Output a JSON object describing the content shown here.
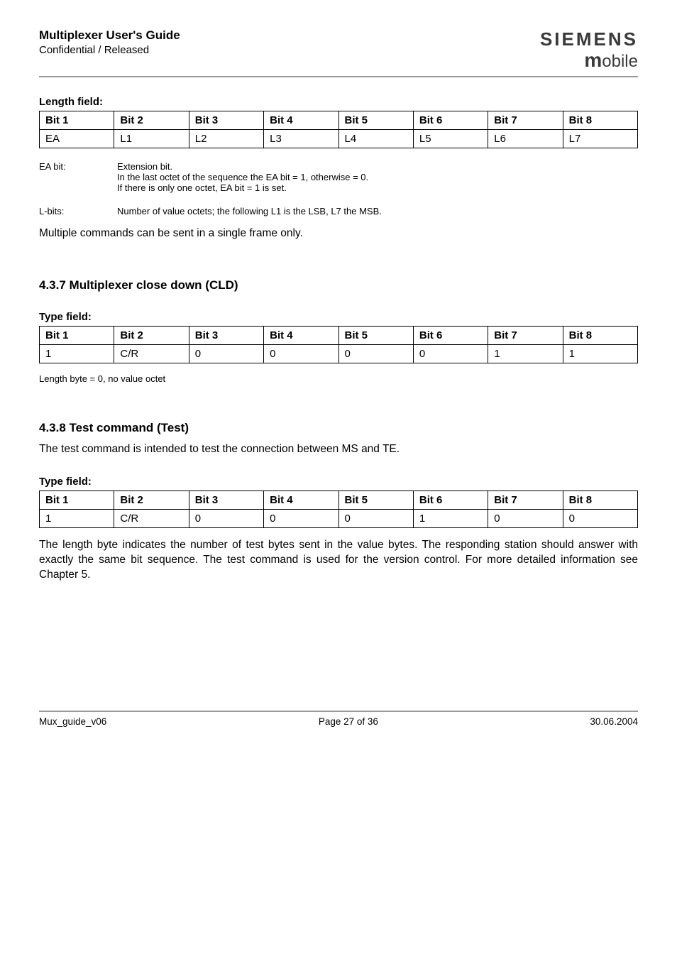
{
  "header": {
    "title": "Multiplexer User's Guide",
    "subtitle": "Confidential / Released",
    "brand_top": "SIEMENS",
    "brand_bottom_m": "m",
    "brand_bottom_rest": "obile"
  },
  "length_field": {
    "label": "Length field:",
    "headers": [
      "Bit 1",
      "Bit 2",
      "Bit 3",
      "Bit 4",
      "Bit 5",
      "Bit 6",
      "Bit 7",
      "Bit 8"
    ],
    "row": [
      "EA",
      "L1",
      "L2",
      "L3",
      "L4",
      "L5",
      "L6",
      "L7"
    ]
  },
  "ea_block": {
    "key": "EA bit:",
    "line1": "Extension bit.",
    "line2": "In the last octet of the sequence the EA bit = 1, otherwise   = 0.",
    "line3": "If there is only one octet, EA bit = 1 is set."
  },
  "lbits_block": {
    "key": "L-bits:",
    "line1": "Number of value octets; the following L1 is the LSB, L7 the MSB."
  },
  "multi_text": "Multiple commands can be sent in a single frame only.",
  "cld": {
    "heading": "4.3.7  Multiplexer close down (CLD)",
    "type_label": "Type field:",
    "headers": [
      "Bit 1",
      "Bit 2",
      "Bit 3",
      "Bit 4",
      "Bit 5",
      "Bit 6",
      "Bit 7",
      "Bit 8"
    ],
    "row": [
      "1",
      "C/R",
      "0",
      "0",
      "0",
      "0",
      "1",
      "1"
    ],
    "note": "Length byte = 0, no value octet"
  },
  "test": {
    "heading": "4.3.8  Test command (Test)",
    "intro": "The test command is intended to test the connection between MS and TE.",
    "type_label": "Type field:",
    "headers": [
      "Bit 1",
      "Bit 2",
      "Bit 3",
      "Bit 4",
      "Bit 5",
      "Bit 6",
      "Bit 7",
      "Bit 8"
    ],
    "row": [
      "1",
      "C/R",
      "0",
      "0",
      "0",
      "1",
      "0",
      "0"
    ],
    "para": "The length byte indicates the number of test bytes sent in the value bytes. The responding station should answer with exactly the same bit sequence. The test command is used for the version control. For more detailed information see Chapter 5."
  },
  "footer": {
    "left": "Mux_guide_v06",
    "center": "Page 27 of 36",
    "right": "30.06.2004"
  }
}
